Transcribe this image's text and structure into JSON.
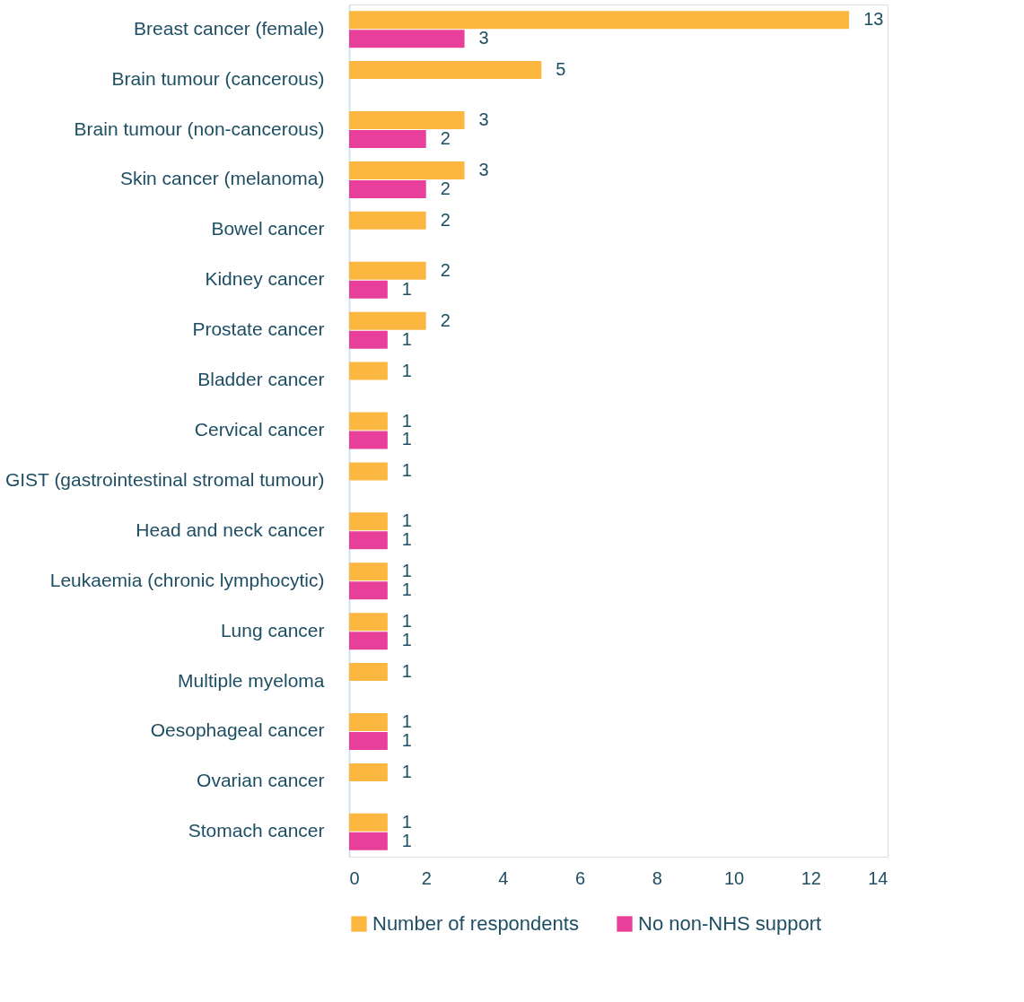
{
  "chart_data": {
    "type": "bar",
    "orientation": "horizontal",
    "categories": [
      "Breast cancer (female)",
      "Brain tumour (cancerous)",
      "Brain tumour (non-cancerous)",
      "Skin cancer (melanoma)",
      "Bowel cancer",
      "Kidney cancer",
      "Prostate cancer",
      "Bladder cancer",
      "Cervical cancer",
      "GIST (gastrointestinal stromal tumour)",
      "Head and neck cancer",
      "Leukaemia (chronic lymphocytic)",
      "Lung cancer",
      "Multiple myeloma",
      "Oesophageal cancer",
      "Ovarian cancer",
      "Stomach cancer"
    ],
    "series": [
      {
        "name": "Number of respondents",
        "color": "#fbb73f",
        "values": [
          13,
          5,
          3,
          3,
          2,
          2,
          2,
          1,
          1,
          1,
          1,
          1,
          1,
          1,
          1,
          1,
          1
        ]
      },
      {
        "name": "No non-NHS support",
        "color": "#e8409a",
        "values": [
          3,
          null,
          2,
          2,
          null,
          1,
          1,
          null,
          1,
          null,
          1,
          1,
          1,
          null,
          1,
          null,
          1
        ]
      }
    ],
    "xlim": [
      0,
      14
    ],
    "xticks": [
      0,
      2,
      4,
      6,
      8,
      10,
      12,
      14
    ],
    "grid": false,
    "data_labels": true,
    "legend": "bottom"
  }
}
